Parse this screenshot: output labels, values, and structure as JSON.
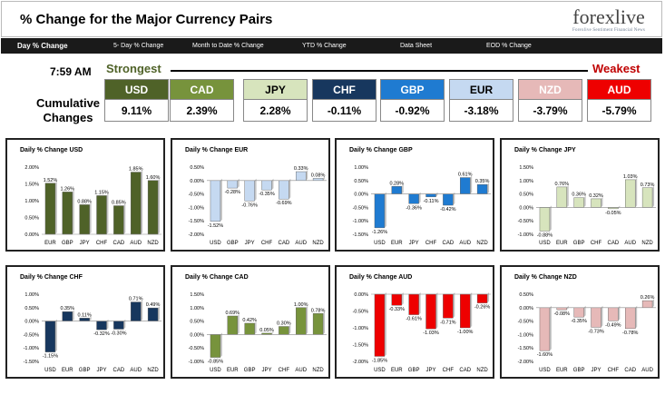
{
  "header": {
    "title": "% Change for the Major Currency Pairs",
    "logo_main": "forexlive",
    "logo_x": "X",
    "logo_tag": "Forexlive Sentiment Financial News"
  },
  "nav": [
    {
      "label": "Day % Change",
      "active": true
    },
    {
      "label": "5- Day % Change",
      "active": false
    },
    {
      "label": "Month to Date % Change",
      "active": false
    },
    {
      "label": "YTD % Change",
      "active": false
    },
    {
      "label": "Data Sheet",
      "active": false
    },
    {
      "label": "EOD % Change",
      "active": false
    }
  ],
  "summary": {
    "time": "7:59 AM",
    "strongest": "Strongest",
    "weakest": "Weakest",
    "cumulative_label": "Cumulative Changes",
    "currencies": [
      {
        "name": "USD",
        "value": "9.11%",
        "bg": "#4f6228",
        "fg": "#ffffff"
      },
      {
        "name": "CAD",
        "value": "2.39%",
        "bg": "#77933c",
        "fg": "#ffffff"
      },
      {
        "name": "JPY",
        "value": "2.28%",
        "bg": "#d7e4bd",
        "fg": "#000000"
      },
      {
        "name": "CHF",
        "value": "-0.11%",
        "bg": "#17375e",
        "fg": "#ffffff"
      },
      {
        "name": "GBP",
        "value": "-0.92%",
        "bg": "#1f7bd1",
        "fg": "#ffffff"
      },
      {
        "name": "EUR",
        "value": "-3.18%",
        "bg": "#c5d9f1",
        "fg": "#000000"
      },
      {
        "name": "NZD",
        "value": "-3.79%",
        "bg": "#e6b9b8",
        "fg": "#ffffff"
      },
      {
        "name": "AUD",
        "value": "-5.79%",
        "bg": "#ee0000",
        "fg": "#ffffff"
      }
    ]
  },
  "chart_data": [
    {
      "type": "bar",
      "title": "Daily % Change USD",
      "color": "#4f6228",
      "categories": [
        "EUR",
        "GBP",
        "JPY",
        "CHF",
        "CAD",
        "AUD",
        "NZD"
      ],
      "values": [
        1.52,
        1.26,
        0.88,
        1.15,
        0.85,
        1.85,
        1.6
      ],
      "labels": [
        "1.52%",
        "1.26%",
        "0.88%",
        "1.15%",
        "0.85%",
        "1.85%",
        "1.60%"
      ],
      "ylim": [
        0,
        2
      ],
      "ticks": [
        0,
        0.5,
        1.0,
        1.5,
        2.0
      ],
      "tick_labels": [
        "0.00%",
        "0.50%",
        "1.00%",
        "1.50%",
        "2.00%"
      ]
    },
    {
      "type": "bar",
      "title": "Daily % Change EUR",
      "color": "#c5d9f1",
      "categories": [
        "USD",
        "GBP",
        "JPY",
        "CHF",
        "CAD",
        "AUD",
        "NZD"
      ],
      "values": [
        -1.52,
        -0.28,
        -0.76,
        -0.35,
        -0.69,
        0.33,
        0.08
      ],
      "labels": [
        "-1.52%",
        "-0.28%",
        "-0.76%",
        "-0.35%",
        "-0.69%",
        "0.33%",
        "0.08%"
      ],
      "ylim": [
        -2,
        0.5
      ],
      "ticks": [
        0.5,
        0,
        -0.5,
        -1.0,
        -1.5,
        -2.0
      ],
      "tick_labels": [
        "0.50%",
        "0.00%",
        "-0.50%",
        "-1.00%",
        "-1.50%",
        "-2.00%"
      ]
    },
    {
      "type": "bar",
      "title": "Daily % Change GBP",
      "color": "#1f7bd1",
      "categories": [
        "USD",
        "EUR",
        "JPY",
        "CHF",
        "CAD",
        "AUD",
        "NZD"
      ],
      "values": [
        -1.26,
        0.28,
        -0.36,
        -0.11,
        -0.42,
        0.61,
        0.35
      ],
      "labels": [
        "-1.26%",
        "0.28%",
        "-0.36%",
        "-0.11%",
        "-0.42%",
        "0.61%",
        "0.35%"
      ],
      "ylim": [
        -1.5,
        1.0
      ],
      "ticks": [
        1.0,
        0.5,
        0,
        -0.5,
        -1.0,
        -1.5
      ],
      "tick_labels": [
        "1.00%",
        "0.50%",
        "0.00%",
        "-0.50%",
        "-1.00%",
        "-1.50%"
      ]
    },
    {
      "type": "bar",
      "title": "Daily % Change JPY",
      "color": "#d7e4bd",
      "categories": [
        "USD",
        "EUR",
        "GBP",
        "CHF",
        "CAD",
        "AUD",
        "NZD"
      ],
      "values": [
        -0.88,
        0.76,
        0.36,
        0.32,
        -0.05,
        1.03,
        0.73
      ],
      "labels": [
        "-0.88%",
        "0.76%",
        "0.36%",
        "0.32%",
        "-0.05%",
        "1.03%",
        "0.73%"
      ],
      "ylim": [
        -1.0,
        1.5
      ],
      "ticks": [
        1.5,
        1.0,
        0.5,
        0,
        -0.5,
        -1.0
      ],
      "tick_labels": [
        "1.50%",
        "1.00%",
        "0.50%",
        "0.00%",
        "-0.50%",
        "-1.00%"
      ]
    },
    {
      "type": "bar",
      "title": "Daily % Change CHF",
      "color": "#17375e",
      "categories": [
        "USD",
        "EUR",
        "GBP",
        "JPY",
        "CAD",
        "AUD",
        "NZD"
      ],
      "values": [
        -1.15,
        0.35,
        0.11,
        -0.32,
        -0.3,
        0.71,
        0.49
      ],
      "labels": [
        "-1.15%",
        "0.35%",
        "0.11%",
        "-0.32%",
        "-0.30%",
        "0.71%",
        "0.49%"
      ],
      "ylim": [
        -1.5,
        1.0
      ],
      "ticks": [
        1.0,
        0.5,
        0,
        -0.5,
        -1.0,
        -1.5
      ],
      "tick_labels": [
        "1.00%",
        "0.50%",
        "0.00%",
        "-0.50%",
        "-1.00%",
        "-1.50%"
      ]
    },
    {
      "type": "bar",
      "title": "Daily % Change CAD",
      "color": "#77933c",
      "categories": [
        "USD",
        "EUR",
        "GBP",
        "JPY",
        "CHF",
        "AUD",
        "NZD"
      ],
      "values": [
        -0.85,
        0.69,
        0.42,
        0.05,
        0.3,
        1.0,
        0.78
      ],
      "labels": [
        "-0.85%",
        "0.69%",
        "0.42%",
        "0.05%",
        "0.30%",
        "1.00%",
        "0.78%"
      ],
      "ylim": [
        -1.0,
        1.5
      ],
      "ticks": [
        1.5,
        1.0,
        0.5,
        0,
        -0.5,
        -1.0
      ],
      "tick_labels": [
        "1.50%",
        "1.00%",
        "0.50%",
        "0.00%",
        "-0.50%",
        "-1.00%"
      ]
    },
    {
      "type": "bar",
      "title": "Daily % Change AUD",
      "color": "#ee0000",
      "categories": [
        "USD",
        "EUR",
        "GBP",
        "JPY",
        "CHF",
        "CAD",
        "NZD"
      ],
      "values": [
        -1.85,
        -0.33,
        -0.61,
        -1.03,
        -0.71,
        -1.0,
        -0.26
      ],
      "labels": [
        "-1.85%",
        "-0.33%",
        "-0.61%",
        "-1.03%",
        "-0.71%",
        "-1.00%",
        "-0.26%"
      ],
      "ylim": [
        -2.0,
        0
      ],
      "ticks": [
        0,
        -0.5,
        -1.0,
        -1.5,
        -2.0
      ],
      "tick_labels": [
        "0.00%",
        "-0.50%",
        "-1.00%",
        "-1.50%",
        "-2.00%"
      ]
    },
    {
      "type": "bar",
      "title": "Daily % Change NZD",
      "color": "#e6b9b8",
      "categories": [
        "USD",
        "EUR",
        "GBP",
        "JPY",
        "CHF",
        "CAD",
        "AUD"
      ],
      "values": [
        -1.6,
        -0.08,
        -0.35,
        -0.73,
        -0.49,
        -0.78,
        0.26
      ],
      "labels": [
        "-1.60%",
        "-0.08%",
        "-0.35%",
        "-0.73%",
        "-0.49%",
        "-0.78%",
        "0.26%"
      ],
      "ylim": [
        -2.0,
        0.5
      ],
      "ticks": [
        0.5,
        0,
        -0.5,
        -1.0,
        -1.5,
        -2.0
      ],
      "tick_labels": [
        "0.50%",
        "0.00%",
        "-0.50%",
        "-1.00%",
        "-1.50%",
        "-2.00%"
      ]
    }
  ]
}
